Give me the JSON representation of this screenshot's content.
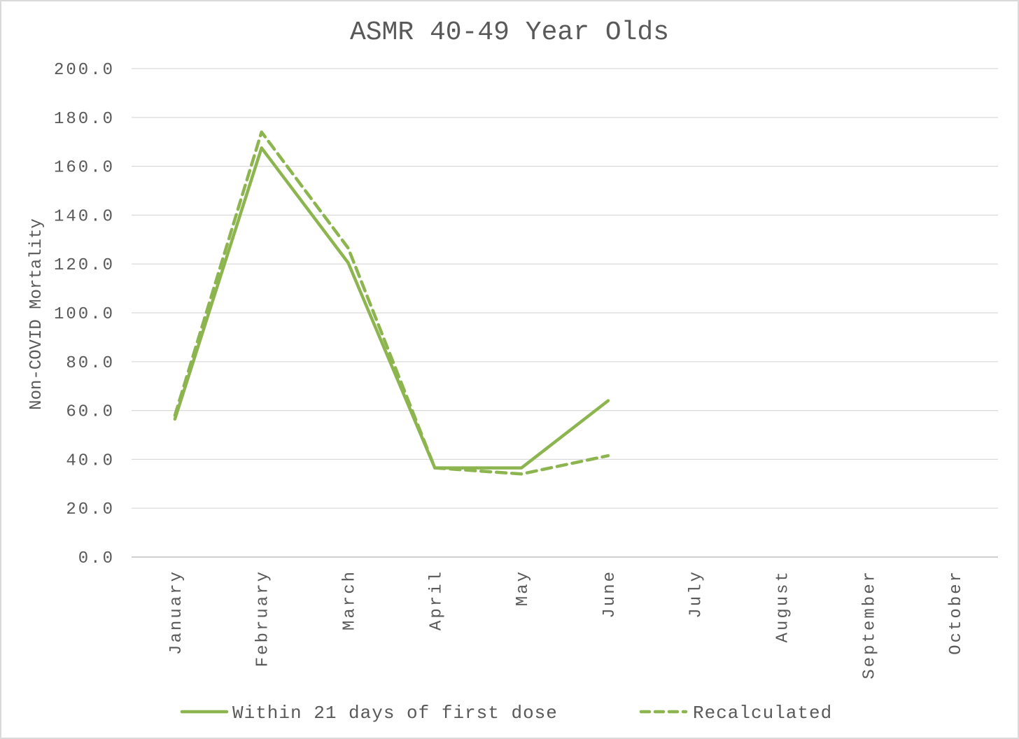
{
  "chart_data": {
    "type": "line",
    "title": "ASMR 40-49 Year Olds",
    "ylabel": "Non-COVID Mortality",
    "xlabel": "",
    "ylim": [
      0,
      200
    ],
    "ytick_step": 20,
    "ytick_labels": [
      "0.0",
      "20.0",
      "40.0",
      "60.0",
      "80.0",
      "100.0",
      "120.0",
      "140.0",
      "160.0",
      "180.0",
      "200.0"
    ],
    "categories": [
      "January",
      "February",
      "March",
      "April",
      "May",
      "June",
      "July",
      "August",
      "September",
      "October"
    ],
    "grid": true,
    "legend_position": "bottom",
    "series": [
      {
        "name": "Within 21 days of first dose",
        "style": "solid",
        "color": "#8db54f",
        "values": [
          56.5,
          167.5,
          120.5,
          36.5,
          36.5,
          64.0,
          null,
          null,
          null,
          null
        ]
      },
      {
        "name": "Recalculated",
        "style": "dashed",
        "color": "#8db54f",
        "values": [
          58.0,
          174.0,
          126.5,
          36.5,
          34.0,
          41.5,
          null,
          null,
          null,
          null
        ]
      }
    ]
  }
}
